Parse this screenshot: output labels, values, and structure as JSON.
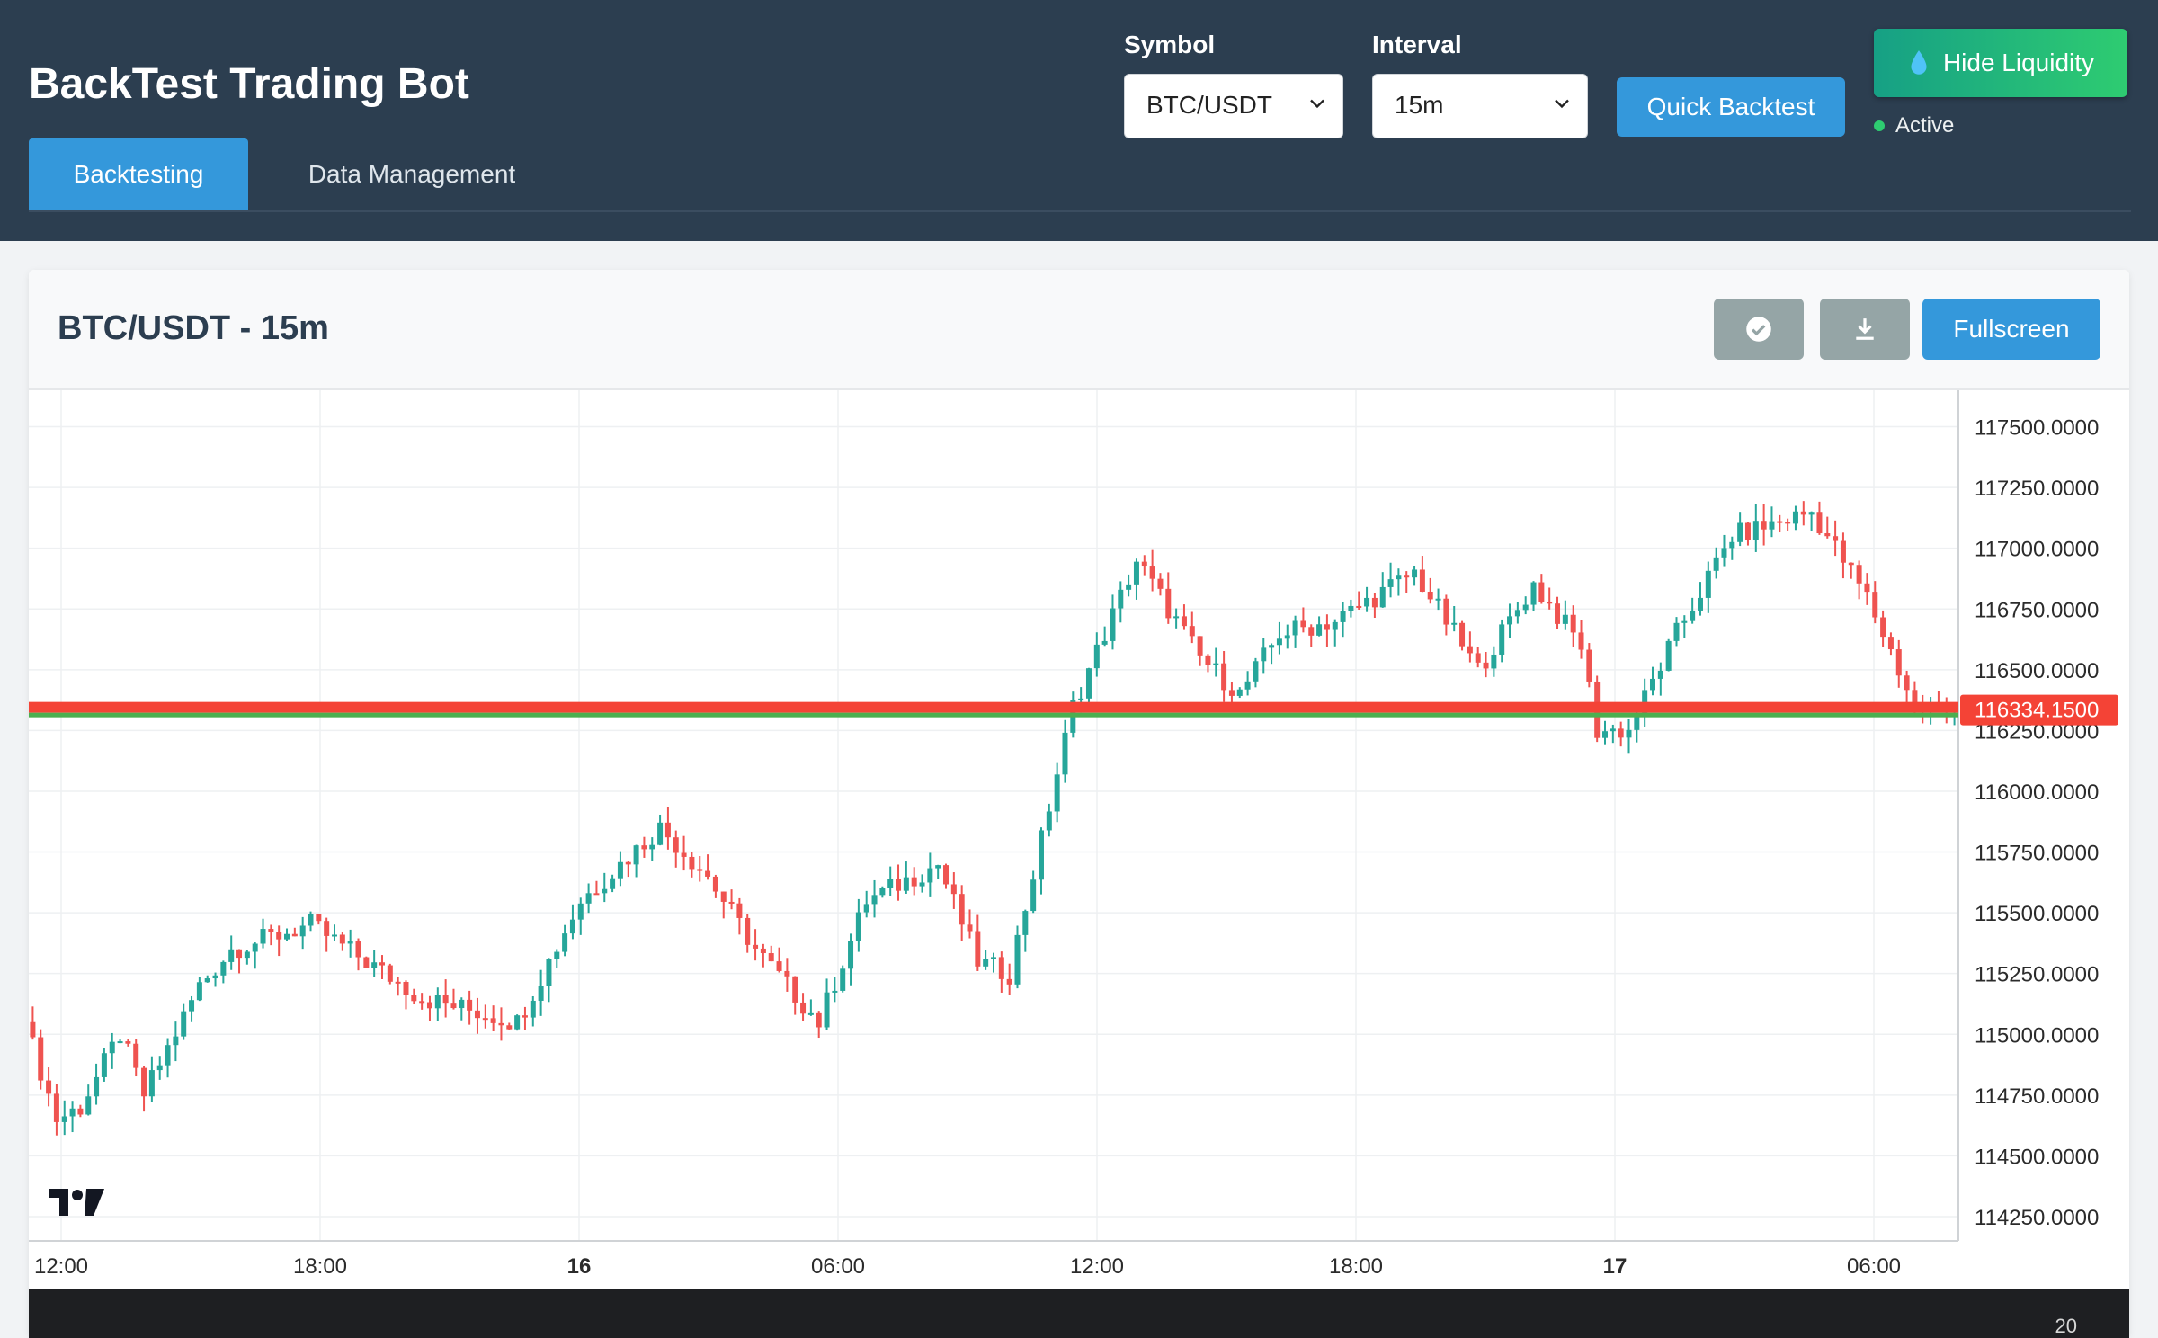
{
  "app": {
    "title": "BackTest Trading Bot"
  },
  "controls": {
    "symbol_label": "Symbol",
    "symbol_value": "BTC/USDT",
    "interval_label": "Interval",
    "interval_value": "15m",
    "quick_backtest_label": "Quick Backtest",
    "hide_liquidity_label": "Hide Liquidity",
    "liquidity_status": "Active"
  },
  "tabs": [
    {
      "label": "Backtesting",
      "active": true
    },
    {
      "label": "Data Management",
      "active": false
    }
  ],
  "panel": {
    "title": "BTC/USDT - 15m",
    "fullscreen_label": "Fullscreen",
    "icons": [
      "check-circle-icon",
      "download-icon"
    ]
  },
  "colors": {
    "header": "#2c3e50",
    "accent": "#3498db",
    "up": "#26a69a",
    "down": "#ef5350",
    "liquidity_line": "#f44336",
    "liquidity_line_secondary": "#4caf50"
  },
  "chart_data": {
    "type": "candlestick",
    "price_ticks": [
      "117500.0000",
      "117250.0000",
      "117000.0000",
      "116750.0000",
      "116500.0000",
      "116250.0000",
      "116000.0000",
      "115750.0000",
      "115500.0000",
      "115250.0000",
      "115000.0000",
      "114750.0000",
      "114500.0000",
      "114250.0000"
    ],
    "time_ticks": [
      "12:00",
      "18:00",
      "16",
      "06:00",
      "12:00",
      "18:00",
      "17",
      "06:00"
    ],
    "bold_time_ticks": [
      "16",
      "17"
    ],
    "ylim": [
      114150,
      117650
    ],
    "current_price": 116334.15,
    "current_price_label": "116334.1500",
    "grid": true,
    "anchors": [
      [
        0,
        115050
      ],
      [
        4,
        114650
      ],
      [
        7,
        114700
      ],
      [
        12,
        115000
      ],
      [
        15,
        114750
      ],
      [
        22,
        115200
      ],
      [
        26,
        115350
      ],
      [
        36,
        115450
      ],
      [
        50,
        115150
      ],
      [
        62,
        115050
      ],
      [
        70,
        115550
      ],
      [
        80,
        115850
      ],
      [
        86,
        115650
      ],
      [
        92,
        115350
      ],
      [
        100,
        115050
      ],
      [
        106,
        115550
      ],
      [
        115,
        115700
      ],
      [
        120,
        115300
      ],
      [
        124,
        115250
      ],
      [
        132,
        116350
      ],
      [
        140,
        116950
      ],
      [
        148,
        116550
      ],
      [
        153,
        116400
      ],
      [
        158,
        116650
      ],
      [
        165,
        116700
      ],
      [
        175,
        116900
      ],
      [
        183,
        116500
      ],
      [
        190,
        116850
      ],
      [
        196,
        116600
      ],
      [
        198,
        116250
      ],
      [
        202,
        116250
      ],
      [
        208,
        116650
      ],
      [
        215,
        117050
      ],
      [
        225,
        117150
      ],
      [
        232,
        116800
      ],
      [
        238,
        116350
      ],
      [
        242,
        116334
      ]
    ],
    "bottom_pane_value": "20"
  }
}
